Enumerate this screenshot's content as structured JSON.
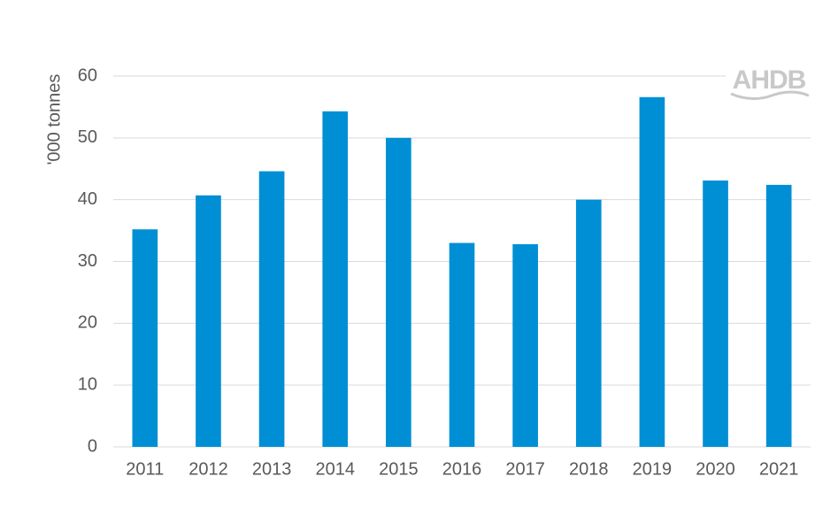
{
  "chart_data": {
    "type": "bar",
    "y_label": "'000 tonnes",
    "watermark": "AHDB",
    "categories": [
      "2011",
      "2012",
      "2013",
      "2014",
      "2015",
      "2016",
      "2017",
      "2018",
      "2019",
      "2020",
      "2021"
    ],
    "values": [
      35.2,
      40.7,
      44.6,
      54.3,
      50.0,
      33.0,
      32.8,
      40.0,
      56.6,
      43.1,
      42.4
    ],
    "color": "#008fd5",
    "ylim": [
      0,
      60
    ],
    "yticks": [
      0,
      10,
      20,
      30,
      40,
      50,
      60
    ],
    "grid": true
  }
}
